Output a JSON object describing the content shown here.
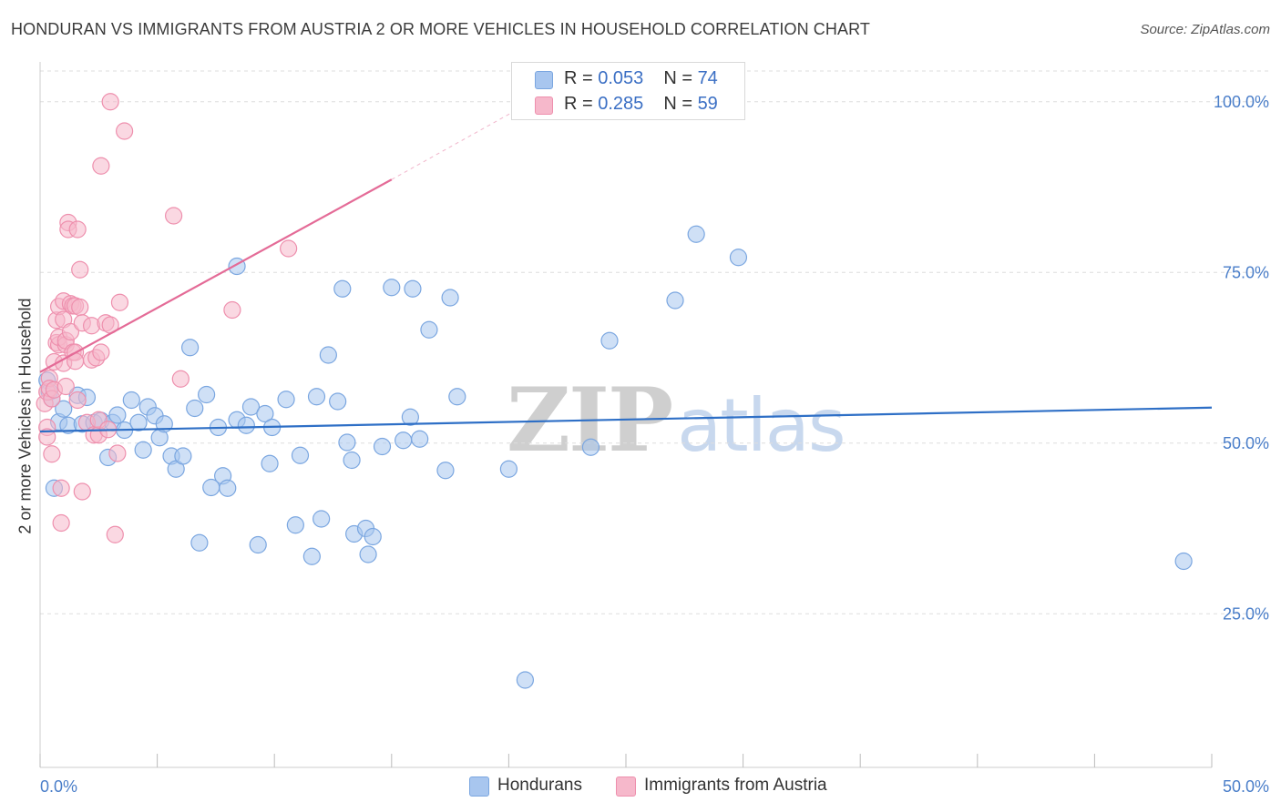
{
  "title": "HONDURAN VS IMMIGRANTS FROM AUSTRIA 2 OR MORE VEHICLES IN HOUSEHOLD CORRELATION CHART",
  "source": "Source: ZipAtlas.com",
  "watermark": {
    "zip": "ZIP",
    "atlas": "atlas"
  },
  "legend_top": [
    {
      "r_label": "R = ",
      "r_value": "0.053",
      "n_label": "N = ",
      "n_value": "74",
      "color": "#a8c6ef"
    },
    {
      "r_label": "R = ",
      "r_value": "0.285",
      "n_label": "N = ",
      "n_value": "59",
      "color": "#f6b8cb"
    }
  ],
  "colors": {
    "blue_fill": "#a8c6ef",
    "blue_stroke": "#7aa6e0",
    "blue_line": "#2e6fc6",
    "pink_fill": "#f6b8cb",
    "pink_stroke": "#ee8fad",
    "pink_line": "#e46b97",
    "grid": "#dddddd",
    "tick_label": "#4a7ec9"
  },
  "chart_data": {
    "type": "scatter",
    "title": "HONDURAN VS IMMIGRANTS FROM AUSTRIA 2 OR MORE VEHICLES IN HOUSEHOLD CORRELATION CHART",
    "xlabel": "",
    "ylabel": "2 or more Vehicles in Household",
    "xlim": [
      0,
      50
    ],
    "ylim": [
      2.5,
      104.5
    ],
    "x_tick_labels": [
      {
        "value": 0,
        "label": "0.0%"
      },
      {
        "value": 50,
        "label": "50.0%"
      }
    ],
    "y_tick_labels": [
      {
        "value": 25,
        "label": "25.0%"
      },
      {
        "value": 50,
        "label": "50.0%"
      },
      {
        "value": 75,
        "label": "75.0%"
      },
      {
        "value": 100,
        "label": "100.0%"
      }
    ],
    "grid": true,
    "legend_position": "bottom",
    "series": [
      {
        "name": "Hondurans",
        "color": "#a8c6ef",
        "r": 0.053,
        "n": 74,
        "trend": {
          "x": [
            0,
            50
          ],
          "y": [
            51.7,
            55.2
          ]
        },
        "points": [
          [
            0.3,
            59.2
          ],
          [
            0.4,
            57.5
          ],
          [
            0.5,
            56.5
          ],
          [
            0.6,
            43.4
          ],
          [
            0.8,
            53.1
          ],
          [
            1.0,
            55.0
          ],
          [
            1.2,
            52.6
          ],
          [
            1.6,
            57.0
          ],
          [
            1.8,
            52.8
          ],
          [
            2.0,
            56.7
          ],
          [
            2.3,
            53.0
          ],
          [
            2.6,
            53.3
          ],
          [
            2.9,
            47.9
          ],
          [
            3.1,
            53.0
          ],
          [
            3.3,
            54.1
          ],
          [
            3.6,
            51.9
          ],
          [
            3.9,
            56.3
          ],
          [
            4.2,
            53.0
          ],
          [
            4.4,
            49.0
          ],
          [
            4.6,
            55.3
          ],
          [
            4.9,
            54.0
          ],
          [
            5.1,
            50.8
          ],
          [
            5.3,
            52.8
          ],
          [
            5.6,
            48.1
          ],
          [
            5.8,
            46.2
          ],
          [
            6.1,
            48.1
          ],
          [
            6.4,
            64.0
          ],
          [
            6.6,
            55.1
          ],
          [
            6.8,
            35.4
          ],
          [
            7.1,
            57.1
          ],
          [
            7.3,
            43.5
          ],
          [
            7.6,
            52.3
          ],
          [
            7.8,
            45.2
          ],
          [
            8.0,
            43.4
          ],
          [
            8.4,
            75.9
          ],
          [
            8.4,
            53.4
          ],
          [
            8.8,
            52.6
          ],
          [
            9.0,
            55.3
          ],
          [
            9.3,
            35.1
          ],
          [
            9.6,
            54.3
          ],
          [
            9.8,
            47.0
          ],
          [
            9.9,
            52.3
          ],
          [
            10.5,
            56.4
          ],
          [
            10.9,
            38.0
          ],
          [
            11.1,
            48.2
          ],
          [
            11.6,
            33.4
          ],
          [
            11.8,
            56.8
          ],
          [
            12.0,
            38.9
          ],
          [
            12.3,
            62.9
          ],
          [
            12.7,
            56.1
          ],
          [
            12.9,
            72.6
          ],
          [
            13.1,
            50.1
          ],
          [
            13.3,
            47.5
          ],
          [
            13.4,
            36.7
          ],
          [
            13.9,
            37.5
          ],
          [
            14.0,
            33.7
          ],
          [
            14.2,
            36.3
          ],
          [
            14.6,
            49.5
          ],
          [
            15.0,
            72.8
          ],
          [
            15.5,
            50.4
          ],
          [
            15.8,
            53.8
          ],
          [
            15.9,
            72.6
          ],
          [
            16.2,
            50.6
          ],
          [
            16.6,
            66.6
          ],
          [
            17.3,
            46.0
          ],
          [
            17.5,
            71.3
          ],
          [
            17.8,
            56.8
          ],
          [
            20.0,
            46.2
          ],
          [
            20.7,
            15.3
          ],
          [
            23.5,
            49.4
          ],
          [
            24.3,
            65.0
          ],
          [
            27.1,
            70.9
          ],
          [
            28.0,
            80.6
          ],
          [
            29.8,
            77.2
          ],
          [
            48.8,
            32.7
          ]
        ]
      },
      {
        "name": "Immigrants from Austria",
        "color": "#f6b8cb",
        "r": 0.285,
        "n": 59,
        "trend": {
          "x": [
            0,
            15
          ],
          "y": [
            60.4,
            88.6
          ]
        },
        "trend_dashed_extension": {
          "x": [
            15,
            20.6
          ],
          "y": [
            88.6,
            99.3
          ]
        },
        "points": [
          [
            0.2,
            55.8
          ],
          [
            0.3,
            52.3
          ],
          [
            0.3,
            50.9
          ],
          [
            0.3,
            57.5
          ],
          [
            0.4,
            59.5
          ],
          [
            0.4,
            58.0
          ],
          [
            0.5,
            56.5
          ],
          [
            0.5,
            48.4
          ],
          [
            0.6,
            61.9
          ],
          [
            0.6,
            57.8
          ],
          [
            0.7,
            64.7
          ],
          [
            0.7,
            68.0
          ],
          [
            0.8,
            64.4
          ],
          [
            0.8,
            65.5
          ],
          [
            0.8,
            70.0
          ],
          [
            0.9,
            38.3
          ],
          [
            0.9,
            43.4
          ],
          [
            1.0,
            61.7
          ],
          [
            1.0,
            68.1
          ],
          [
            1.0,
            70.8
          ],
          [
            1.1,
            58.3
          ],
          [
            1.1,
            64.4
          ],
          [
            1.1,
            65.0
          ],
          [
            1.2,
            82.3
          ],
          [
            1.2,
            81.3
          ],
          [
            1.3,
            70.4
          ],
          [
            1.3,
            66.3
          ],
          [
            1.4,
            70.1
          ],
          [
            1.4,
            63.3
          ],
          [
            1.5,
            63.3
          ],
          [
            1.5,
            62.0
          ],
          [
            1.5,
            70.1
          ],
          [
            1.6,
            56.3
          ],
          [
            1.6,
            81.3
          ],
          [
            1.7,
            75.4
          ],
          [
            1.7,
            69.9
          ],
          [
            1.8,
            67.6
          ],
          [
            1.8,
            42.9
          ],
          [
            2.0,
            53.0
          ],
          [
            2.2,
            62.2
          ],
          [
            2.2,
            67.2
          ],
          [
            2.3,
            51.2
          ],
          [
            2.4,
            62.5
          ],
          [
            2.5,
            51.2
          ],
          [
            2.5,
            53.4
          ],
          [
            2.6,
            63.3
          ],
          [
            2.8,
            67.6
          ],
          [
            2.9,
            52.0
          ],
          [
            3.0,
            67.3
          ],
          [
            3.0,
            100.0
          ],
          [
            3.2,
            36.6
          ],
          [
            3.3,
            48.5
          ],
          [
            3.4,
            70.6
          ],
          [
            3.6,
            95.7
          ],
          [
            2.6,
            90.6
          ],
          [
            5.7,
            83.3
          ],
          [
            6.0,
            59.4
          ],
          [
            8.2,
            69.5
          ],
          [
            10.6,
            78.5
          ]
        ]
      }
    ]
  },
  "legend_bottom": [
    {
      "label": "Hondurans",
      "color": "#a8c6ef"
    },
    {
      "label": "Immigrants from Austria",
      "color": "#f6b8cb"
    }
  ]
}
